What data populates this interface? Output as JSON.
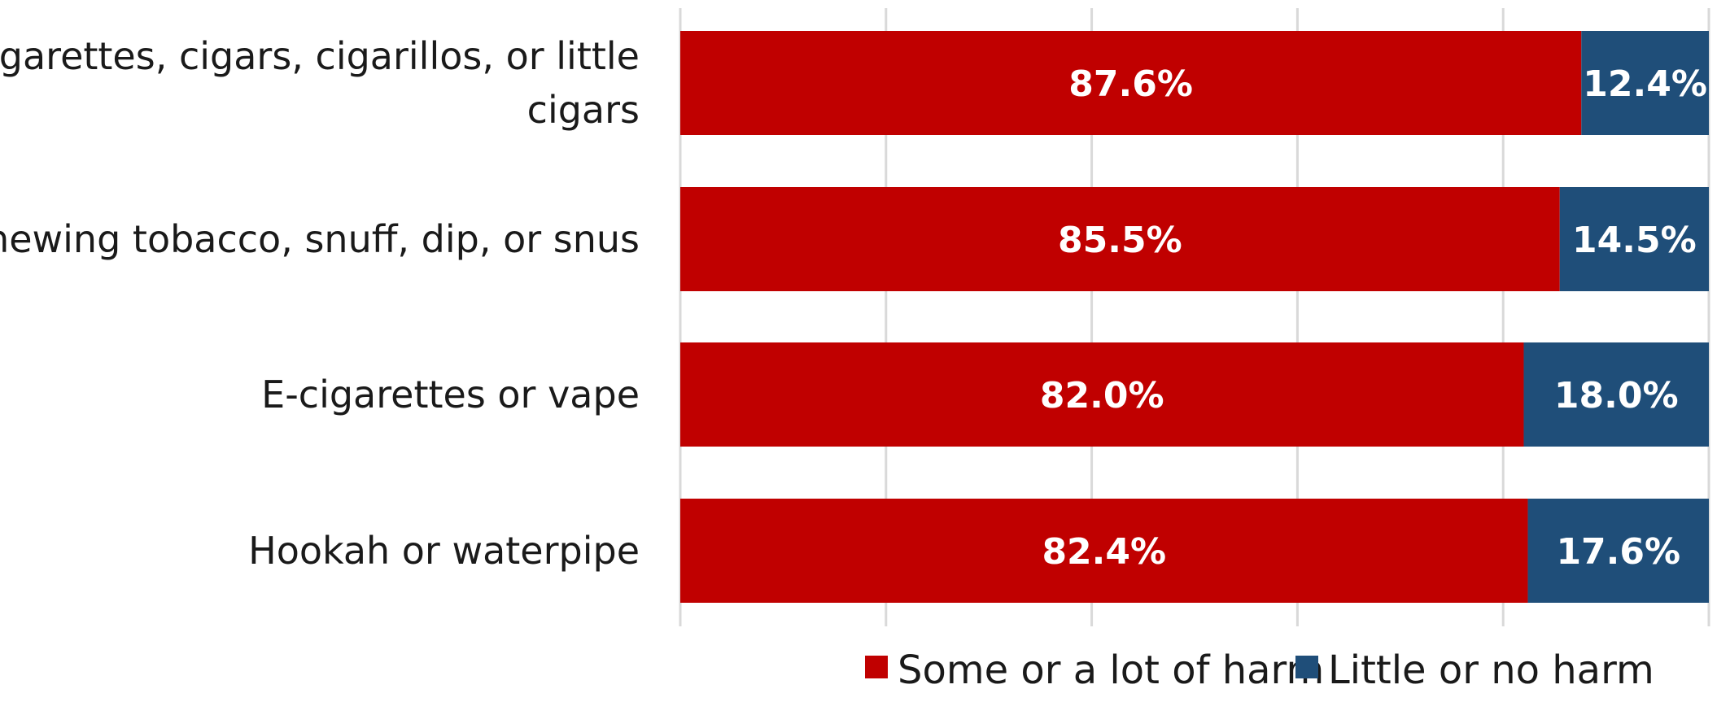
{
  "chart_data": {
    "type": "bar",
    "orientation": "horizontal",
    "stacked": true,
    "categories": [
      "Cigarettes, cigars, cigarillos, or little cigars",
      "Chewing tobacco, snuff, dip, or snus",
      "E-cigarettes or vape",
      "Hookah or waterpipe"
    ],
    "series": [
      {
        "name": "Some or a lot of harm",
        "values": [
          87.6,
          85.5,
          82.0,
          82.4
        ],
        "labels": [
          "87.6%",
          "85.5%",
          "82.0%",
          "82.4%"
        ],
        "color": "#c00000"
      },
      {
        "name": "Little or no harm",
        "values": [
          12.4,
          14.5,
          18.0,
          17.6
        ],
        "labels": [
          "12.4%",
          "14.5%",
          "18.0%",
          "17.6%"
        ],
        "color": "#1f4e79"
      }
    ],
    "xlim": [
      0,
      100
    ],
    "gridlines": true,
    "legend_position": "bottom-right"
  }
}
